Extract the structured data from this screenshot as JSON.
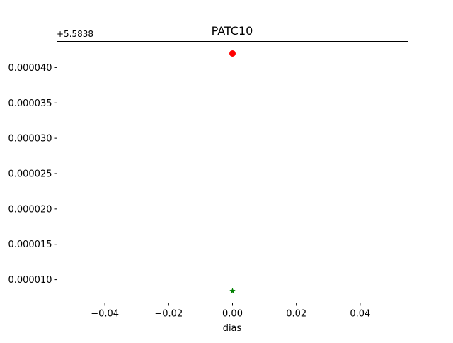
{
  "chart_data": {
    "type": "scatter",
    "title": "PATC10",
    "xlabel": "dias",
    "ylabel": "",
    "y_offset_label": "+5.5838",
    "xlim": [
      -0.055,
      0.055
    ],
    "ylim": [
      6.7e-06,
      4.37e-05
    ],
    "grid": false,
    "x_ticks": [
      {
        "value": -0.04,
        "label": "−0.04"
      },
      {
        "value": -0.02,
        "label": "−0.02"
      },
      {
        "value": 0.0,
        "label": "0.00"
      },
      {
        "value": 0.02,
        "label": "0.02"
      },
      {
        "value": 0.04,
        "label": "0.04"
      }
    ],
    "y_ticks": [
      {
        "value": 1e-05,
        "label": "0.000010"
      },
      {
        "value": 1.5e-05,
        "label": "0.000015"
      },
      {
        "value": 2e-05,
        "label": "0.000020"
      },
      {
        "value": 2.5e-05,
        "label": "0.000025"
      },
      {
        "value": 3e-05,
        "label": "0.000030"
      },
      {
        "value": 3.5e-05,
        "label": "0.000035"
      },
      {
        "value": 4e-05,
        "label": "0.000040"
      }
    ],
    "series": [
      {
        "marker": "circle",
        "color": "#ff0000",
        "points": [
          {
            "x": 0.0,
            "y": 4.2e-05
          }
        ]
      },
      {
        "marker": "star",
        "color": "#008000",
        "points": [
          {
            "x": 0.0,
            "y": 8.4e-06
          }
        ]
      }
    ]
  }
}
